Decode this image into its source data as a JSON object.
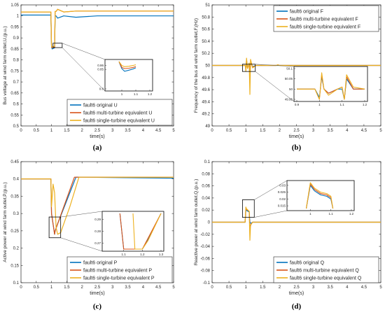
{
  "colors": {
    "original": "#0072BD",
    "multi": "#D95319",
    "single": "#EDB120"
  },
  "chart_data": [
    {
      "type": "line",
      "panel": "(a)",
      "xlabel": "time(s)",
      "ylabel": "Bus voltage at wind farm outlet,U,(p.u.)",
      "xlim": [
        0,
        5
      ],
      "ylim": [
        0.5,
        1.05
      ],
      "xticks": [
        "0",
        "0.5",
        "1",
        "1.5",
        "2",
        "2.5",
        "3",
        "3.5",
        "4",
        "4.5",
        "5"
      ],
      "yticks": [
        "0.5",
        "0.55",
        "0.6",
        "0.65",
        "0.7",
        "0.75",
        "0.8",
        "0.85",
        "0.9",
        "0.95",
        "1",
        "1.05"
      ],
      "legend_position": "bottom-right",
      "grid": false,
      "series": [
        {
          "name": "fault6 original U",
          "color_key": "original",
          "x": [
            0,
            0.98,
            1.0,
            1.02,
            1.05,
            1.1,
            1.12,
            1.15,
            1.2,
            1.4,
            1.8,
            2.5,
            5
          ],
          "y": [
            1.004,
            1.004,
            0.86,
            0.85,
            0.852,
            0.855,
            1.0,
            1.0,
            0.99,
            1.0,
            0.994,
            1.0,
            1.0
          ]
        },
        {
          "name": "fault6 multi-turbine equivalent U",
          "color_key": "multi",
          "x": [
            0,
            0.98,
            1.0,
            1.02,
            1.05,
            1.1,
            1.12,
            1.15,
            1.2,
            1.4,
            1.8,
            2.5,
            5
          ],
          "y": [
            1.018,
            1.018,
            0.86,
            0.855,
            0.856,
            0.858,
            1.02,
            1.02,
            1.03,
            1.018,
            1.022,
            1.022,
            1.022
          ]
        },
        {
          "name": "fault6 single-turbine equivalent U",
          "color_key": "single",
          "x": [
            0,
            0.98,
            1.0,
            1.02,
            1.05,
            1.1,
            1.12,
            1.15,
            1.2,
            1.4,
            1.8,
            2.5,
            5
          ],
          "y": [
            1.018,
            1.018,
            0.862,
            0.858,
            0.86,
            0.862,
            1.02,
            1.02,
            1.03,
            1.018,
            1.022,
            1.022,
            1.022
          ]
        }
      ],
      "inset": {
        "xlim": [
          0.9,
          1.2
        ],
        "ylim": [
          0.8,
          0.87
        ],
        "xticks": [
          "1",
          "1.1",
          "1.2"
        ],
        "yticks": [
          "0.8",
          "0.85",
          "0.86"
        ],
        "series": [
          {
            "color_key": "original",
            "x": [
              0.98,
              1.0,
              1.02,
              1.05,
              1.08,
              1.1
            ],
            "y": [
              0.87,
              0.852,
              0.845,
              0.848,
              0.851,
              0.854
            ]
          },
          {
            "color_key": "multi",
            "x": [
              0.98,
              1.0,
              1.02,
              1.05,
              1.08,
              1.1
            ],
            "y": [
              0.87,
              0.855,
              0.852,
              0.853,
              0.855,
              0.857
            ]
          },
          {
            "color_key": "single",
            "x": [
              0.98,
              1.0,
              1.02,
              1.05,
              1.08,
              1.1
            ],
            "y": [
              0.87,
              0.86,
              0.857,
              0.858,
              0.86,
              0.862
            ]
          }
        ]
      }
    },
    {
      "type": "line",
      "panel": "(b)",
      "xlabel": "time(s)",
      "ylabel": "Frequency of the bus at wind farm outlet,F,(Hz)",
      "xlim": [
        0,
        5
      ],
      "ylim": [
        49,
        51
      ],
      "xticks": [
        "0",
        "0.5",
        "1",
        "1.5",
        "2",
        "2.5",
        "3",
        "3.5",
        "4",
        "4.5",
        "5"
      ],
      "yticks": [
        "49",
        "49.2",
        "49.4",
        "49.6",
        "49.8",
        "50",
        "50.2",
        "50.4",
        "50.6",
        "50.8",
        "51"
      ],
      "legend_position": "top-right",
      "grid": false,
      "series": [
        {
          "name": "fault6 original F",
          "color_key": "original",
          "x": [
            0,
            0.99,
            1.0,
            1.02,
            1.05,
            1.1,
            1.12,
            1.15,
            1.2,
            1.3,
            5
          ],
          "y": [
            50,
            50,
            49.95,
            50.08,
            49.96,
            50.03,
            49.95,
            50.05,
            49.98,
            50,
            50
          ]
        },
        {
          "name": "fault6 multi-turbine equivalent F",
          "color_key": "multi",
          "x": [
            0,
            0.99,
            1.0,
            1.02,
            1.05,
            1.1,
            1.12,
            1.15,
            1.2,
            1.3,
            1.9,
            1.95,
            2.0,
            5
          ],
          "y": [
            50,
            50,
            49.92,
            50.1,
            49.95,
            50.03,
            49.9,
            50.06,
            49.97,
            50,
            50,
            50.01,
            50,
            50
          ]
        },
        {
          "name": "fault6 single-turbine equivalent F",
          "color_key": "single",
          "x": [
            0,
            0.99,
            1.0,
            1.02,
            1.05,
            1.1,
            1.12,
            1.14,
            1.2,
            1.3,
            1.9,
            1.95,
            2.0,
            5
          ],
          "y": [
            50,
            50,
            49.9,
            50.12,
            49.95,
            50.04,
            49.52,
            50.1,
            49.96,
            50,
            50,
            50.01,
            50,
            50
          ]
        }
      ],
      "inset": {
        "xlim": [
          0.9,
          1.2
        ],
        "ylim": [
          49.95,
          50.1
        ],
        "xticks": [
          "0.9",
          "1",
          "1.1",
          "1.2"
        ],
        "yticks": [
          "49.95",
          "50",
          "50.05",
          "50.1"
        ],
        "series": [
          {
            "color_key": "original",
            "x": [
              0.9,
              0.98,
              1.0,
              1.01,
              1.02,
              1.04,
              1.08,
              1.1,
              1.11,
              1.12,
              1.15,
              1.2
            ],
            "y": [
              50,
              50,
              49.96,
              50.06,
              50.0,
              49.98,
              50.0,
              50.0,
              49.95,
              50.05,
              50.0,
              50.0
            ]
          },
          {
            "color_key": "multi",
            "x": [
              0.9,
              0.98,
              1.0,
              1.01,
              1.02,
              1.04,
              1.08,
              1.1,
              1.11,
              1.12,
              1.15,
              1.2
            ],
            "y": [
              50,
              50,
              49.95,
              50.07,
              50.0,
              49.98,
              50.0,
              50.01,
              49.95,
              50.06,
              50.0,
              50.0
            ]
          },
          {
            "color_key": "single",
            "x": [
              0.9,
              0.98,
              1.0,
              1.01,
              1.02,
              1.04,
              1.08,
              1.1,
              1.11,
              1.12,
              1.15,
              1.2
            ],
            "y": [
              50,
              50,
              49.95,
              50.08,
              50.0,
              49.97,
              50.0,
              50.01,
              49.95,
              50.07,
              50.01,
              50.0
            ]
          }
        ]
      }
    },
    {
      "type": "line",
      "panel": "(c)",
      "xlabel": "time(s)",
      "ylabel": "Active power at wind farm outlet,P,(p.u.)",
      "xlim": [
        0,
        5
      ],
      "ylim": [
        0.1,
        0.45
      ],
      "xticks": [
        "0",
        "0.5",
        "1",
        "1.5",
        "2",
        "2.5",
        "3",
        "3.5",
        "4",
        "4.5",
        "5"
      ],
      "yticks": [
        "0.1",
        "0.15",
        "0.2",
        "0.25",
        "0.3",
        "0.35",
        "0.4",
        "0.45"
      ],
      "legend_position": "bottom-right",
      "grid": false,
      "series": [
        {
          "name": "fault6 original P",
          "color_key": "original",
          "x": [
            0,
            0.98,
            1.0,
            1.1,
            1.12,
            1.2,
            1.8,
            2.0,
            5
          ],
          "y": [
            0.4,
            0.4,
            0.3,
            0.24,
            0.25,
            0.27,
            0.405,
            0.405,
            0.402
          ]
        },
        {
          "name": "fault6 multi-turbine equivalent P",
          "color_key": "multi",
          "x": [
            0,
            0.98,
            1.0,
            1.1,
            1.12,
            1.2,
            1.75,
            2.0,
            5
          ],
          "y": [
            0.4,
            0.4,
            0.3,
            0.24,
            0.25,
            0.27,
            0.405,
            0.405,
            0.405
          ]
        },
        {
          "name": "fault6 single-turbine equivalent P",
          "color_key": "single",
          "x": [
            0,
            0.98,
            1.0,
            1.05,
            1.1,
            1.15,
            1.2,
            1.3,
            1.6,
            1.9,
            2.0,
            5
          ],
          "y": [
            0.4,
            0.4,
            0.32,
            0.385,
            0.36,
            0.26,
            0.24,
            0.245,
            0.32,
            0.405,
            0.405,
            0.405
          ]
        }
      ],
      "inset": {
        "xlim": [
          1.0,
          1.3
        ],
        "ylim": [
          0.265,
          0.295
        ],
        "xticks": [
          "1.1",
          "1.2",
          "1.3"
        ],
        "yticks": [
          "0.27",
          "0.28",
          "0.29"
        ],
        "series": [
          {
            "color_key": "original",
            "x": [
              1.08,
              1.1,
              1.2,
              1.22,
              1.3
            ],
            "y": [
              0.295,
              0.265,
              0.265,
              0.27,
              0.295
            ]
          },
          {
            "color_key": "multi",
            "x": [
              1.08,
              1.1,
              1.2,
              1.22,
              1.3
            ],
            "y": [
              0.295,
              0.265,
              0.265,
              0.271,
              0.295
            ]
          },
          {
            "color_key": "single",
            "x": [
              1.15,
              1.16,
              1.2,
              1.23,
              1.3
            ],
            "y": [
              0.295,
              0.265,
              0.265,
              0.272,
              0.295
            ]
          }
        ]
      }
    },
    {
      "type": "line",
      "panel": "(d)",
      "xlabel": "time(s)",
      "ylabel": "Reactive power at wind farm outlet,Q,(p.u.)",
      "xlim": [
        0,
        5
      ],
      "ylim": [
        -0.1,
        0.1
      ],
      "xticks": [
        "0",
        "0.5",
        "1",
        "1.5",
        "2",
        "2.5",
        "3",
        "3.5",
        "4",
        "4.5",
        "5"
      ],
      "yticks": [
        "-0.1",
        "-0.08",
        "-0.06",
        "-0.04",
        "-0.02",
        "0",
        "0.02",
        "0.04",
        "0.06",
        "0.08",
        "0.1"
      ],
      "legend_position": "bottom-right",
      "grid": false,
      "series": [
        {
          "name": "fault6 original Q",
          "color_key": "original",
          "x": [
            0,
            0.98,
            1.0,
            1.1,
            1.12,
            1.15,
            1.2,
            5
          ],
          "y": [
            0,
            0,
            0.02,
            0.017,
            0.0,
            -0.002,
            0.0,
            0.0
          ]
        },
        {
          "name": "fault6 multi-turbine equivalent Q",
          "color_key": "multi",
          "x": [
            0,
            0.98,
            1.0,
            1.1,
            1.12,
            1.15,
            1.2,
            5
          ],
          "y": [
            0,
            0,
            0.022,
            0.018,
            -0.01,
            -0.004,
            0.0,
            0.0
          ]
        },
        {
          "name": "fault6 single-turbine equivalent Q",
          "color_key": "single",
          "x": [
            0,
            0.98,
            1.0,
            1.02,
            1.1,
            1.12,
            1.14,
            1.2,
            5
          ],
          "y": [
            0,
            0,
            0.025,
            0.022,
            0.018,
            -0.03,
            -0.005,
            0.0,
            0.0
          ]
        }
      ],
      "inset": {
        "xlim": [
          0.9,
          1.2
        ],
        "ylim": [
          0.013,
          0.032
        ],
        "xticks": [
          "1",
          "1.1",
          "1.2"
        ],
        "yticks": [
          "0.015",
          "0.02",
          "0.025",
          "0.03"
        ],
        "series": [
          {
            "color_key": "original",
            "x": [
              0.98,
              1.0,
              1.02,
              1.05,
              1.08,
              1.1,
              1.11
            ],
            "y": [
              0.013,
              0.03,
              0.026,
              0.023,
              0.022,
              0.02,
              0.013
            ]
          },
          {
            "color_key": "multi",
            "x": [
              0.98,
              1.0,
              1.02,
              1.05,
              1.08,
              1.1,
              1.11
            ],
            "y": [
              0.013,
              0.031,
              0.027,
              0.024,
              0.023,
              0.021,
              0.013
            ]
          },
          {
            "color_key": "single",
            "x": [
              0.98,
              1.0,
              1.02,
              1.05,
              1.08,
              1.1,
              1.11
            ],
            "y": [
              0.013,
              0.032,
              0.028,
              0.025,
              0.024,
              0.022,
              0.013
            ]
          }
        ]
      }
    }
  ]
}
